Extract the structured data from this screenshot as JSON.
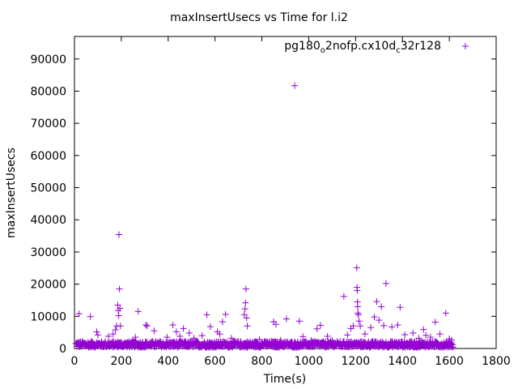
{
  "chart_data": {
    "type": "scatter",
    "title": "maxInsertUsecs vs Time for l.i2",
    "xlabel": "Time(s)",
    "ylabel": "maxInsertUsecs",
    "xlim": [
      0,
      1800
    ],
    "ylim": [
      0,
      97000
    ],
    "xticks": [
      0,
      200,
      400,
      600,
      800,
      1000,
      1200,
      1400,
      1600,
      1800
    ],
    "yticks": [
      0,
      10000,
      20000,
      30000,
      40000,
      50000,
      60000,
      70000,
      80000,
      90000
    ],
    "grid": false,
    "legend_position": "top-right",
    "series": [
      {
        "name_parts": [
          "pg180",
          "o",
          "2nofp.cx10d",
          "c",
          "32r128"
        ],
        "color": "#9400d3",
        "marker": "plus",
        "points": [
          [
            20,
            10800
          ],
          [
            68,
            9900
          ],
          [
            95,
            5200
          ],
          [
            100,
            4200
          ],
          [
            145,
            3800
          ],
          [
            165,
            4500
          ],
          [
            175,
            5800
          ],
          [
            180,
            7000
          ],
          [
            185,
            13500
          ],
          [
            187,
            11800
          ],
          [
            189,
            10200
          ],
          [
            190,
            35400
          ],
          [
            192,
            18500
          ],
          [
            194,
            12500
          ],
          [
            196,
            7000
          ],
          [
            260,
            3500
          ],
          [
            272,
            11500
          ],
          [
            305,
            7300
          ],
          [
            310,
            7000
          ],
          [
            340,
            5500
          ],
          [
            395,
            3500
          ],
          [
            420,
            7300
          ],
          [
            435,
            5200
          ],
          [
            450,
            3800
          ],
          [
            465,
            6200
          ],
          [
            490,
            4800
          ],
          [
            510,
            3200
          ],
          [
            545,
            4000
          ],
          [
            565,
            10500
          ],
          [
            580,
            6800
          ],
          [
            610,
            5200
          ],
          [
            620,
            4500
          ],
          [
            632,
            8300
          ],
          [
            645,
            10600
          ],
          [
            670,
            3200
          ],
          [
            725,
            10500
          ],
          [
            728,
            12300
          ],
          [
            730,
            14200
          ],
          [
            732,
            18500
          ],
          [
            735,
            9500
          ],
          [
            738,
            7000
          ],
          [
            790,
            2800
          ],
          [
            850,
            8300
          ],
          [
            860,
            7500
          ],
          [
            880,
            2600
          ],
          [
            905,
            9200
          ],
          [
            940,
            81700
          ],
          [
            960,
            8500
          ],
          [
            975,
            3700
          ],
          [
            1010,
            2500
          ],
          [
            1035,
            6100
          ],
          [
            1050,
            7200
          ],
          [
            1080,
            3800
          ],
          [
            1100,
            2500
          ],
          [
            1150,
            16200
          ],
          [
            1165,
            4200
          ],
          [
            1180,
            6200
          ],
          [
            1190,
            7000
          ],
          [
            1205,
            25100
          ],
          [
            1206,
            19000
          ],
          [
            1207,
            18000
          ],
          [
            1208,
            14500
          ],
          [
            1209,
            13000
          ],
          [
            1210,
            11000
          ],
          [
            1212,
            10500
          ],
          [
            1215,
            8500
          ],
          [
            1220,
            7000
          ],
          [
            1240,
            4500
          ],
          [
            1265,
            6500
          ],
          [
            1280,
            9800
          ],
          [
            1290,
            14600
          ],
          [
            1300,
            8800
          ],
          [
            1310,
            13000
          ],
          [
            1320,
            7100
          ],
          [
            1330,
            20200
          ],
          [
            1355,
            6700
          ],
          [
            1380,
            7300
          ],
          [
            1390,
            12800
          ],
          [
            1410,
            4300
          ],
          [
            1445,
            4800
          ],
          [
            1470,
            3200
          ],
          [
            1490,
            5900
          ],
          [
            1500,
            4100
          ],
          [
            1520,
            3500
          ],
          [
            1540,
            8200
          ],
          [
            1560,
            4500
          ],
          [
            1585,
            11000
          ],
          [
            1600,
            3000
          ],
          [
            1610,
            2600
          ]
        ],
        "baseline": {
          "x_range": [
            5,
            1615
          ],
          "step": 3,
          "y_range": [
            300,
            2200
          ]
        }
      }
    ]
  }
}
